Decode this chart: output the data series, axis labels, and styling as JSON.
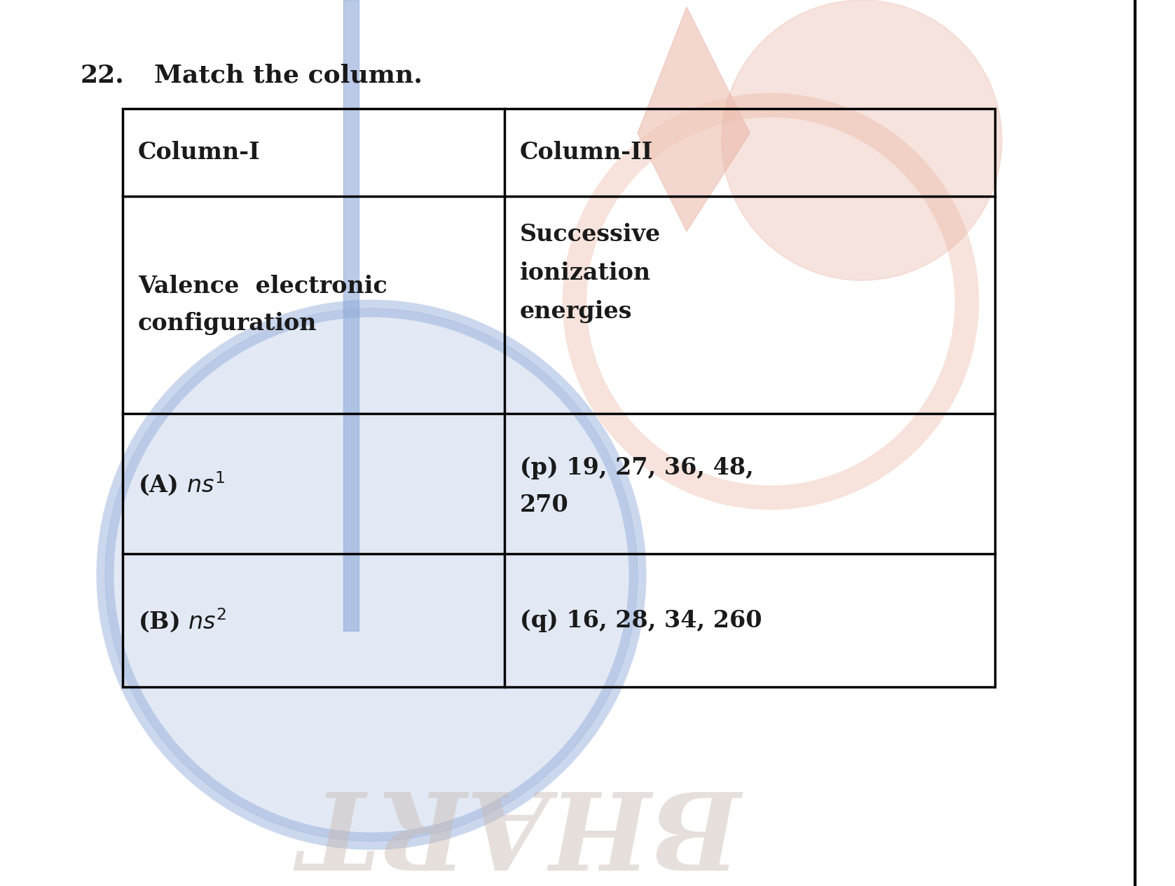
{
  "title_number": "22.",
  "title_text": "Match the column.",
  "title_fontsize": 26,
  "background_color": "#ffffff",
  "col1_header": "Column-I",
  "col2_header": "Column-II",
  "col1_desc_line1": "Valence  electronic",
  "col1_desc_line2": "configuration",
  "col2_desc_line1": "Successive",
  "col2_desc_line2": "ionization",
  "col2_desc_line3": "energies",
  "col1_rowA": "(A) ",
  "col1_rowA_math": "ns^1",
  "col2_rowA_line1": "(p) 19, 27, 36, 48,",
  "col2_rowA_line2": "270",
  "col1_rowB": "(B) ",
  "col1_rowB_math": "ns^2",
  "col2_rowB": "(q) 16, 28, 34, 260",
  "line_color": "#000000",
  "text_color": "#1a1a1a",
  "cell_fontsize": 24,
  "header_fontsize": 24,
  "watermark_blue": "#8ca8d8",
  "watermark_red": "#e8b0a0",
  "watermark_pink": "#f0c8b8",
  "table_lw": 2.5
}
